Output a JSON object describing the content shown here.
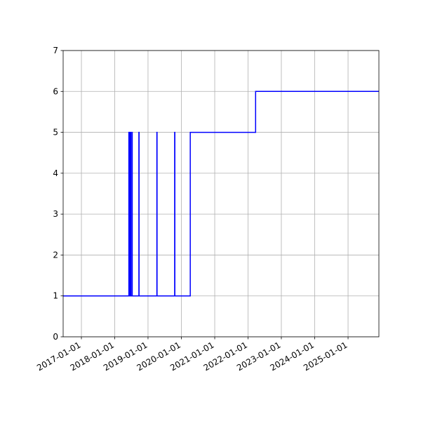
{
  "chart_data": {
    "type": "line",
    "drawstyle": "steps-post",
    "title": "",
    "xlabel": "",
    "ylabel": "",
    "xlim": [
      "2016-06-15",
      "2025-12-05"
    ],
    "ylim": [
      0,
      7
    ],
    "grid": true,
    "line_color": "#0000ff",
    "x_ticks": [
      "2017-01-01",
      "2018-01-01",
      "2019-01-01",
      "2020-01-01",
      "2021-01-01",
      "2022-01-01",
      "2023-01-01",
      "2024-01-01",
      "2025-01-01"
    ],
    "y_ticks": [
      0,
      1,
      2,
      3,
      4,
      5,
      6,
      7
    ],
    "series": [
      {
        "points": [
          [
            "2016-06-15",
            1
          ],
          [
            "2018-06-05",
            5
          ],
          [
            "2018-06-12",
            1
          ],
          [
            "2018-06-20",
            5
          ],
          [
            "2018-06-25",
            1
          ],
          [
            "2018-07-08",
            5
          ],
          [
            "2018-07-12",
            1
          ],
          [
            "2018-09-23",
            5
          ],
          [
            "2018-09-25",
            1
          ],
          [
            "2019-04-08",
            5
          ],
          [
            "2019-04-10",
            1
          ],
          [
            "2019-10-20",
            5
          ],
          [
            "2019-10-22",
            1
          ],
          [
            "2020-04-08",
            5
          ],
          [
            "2022-03-25",
            6
          ],
          [
            "2025-12-05",
            6
          ]
        ]
      }
    ]
  }
}
